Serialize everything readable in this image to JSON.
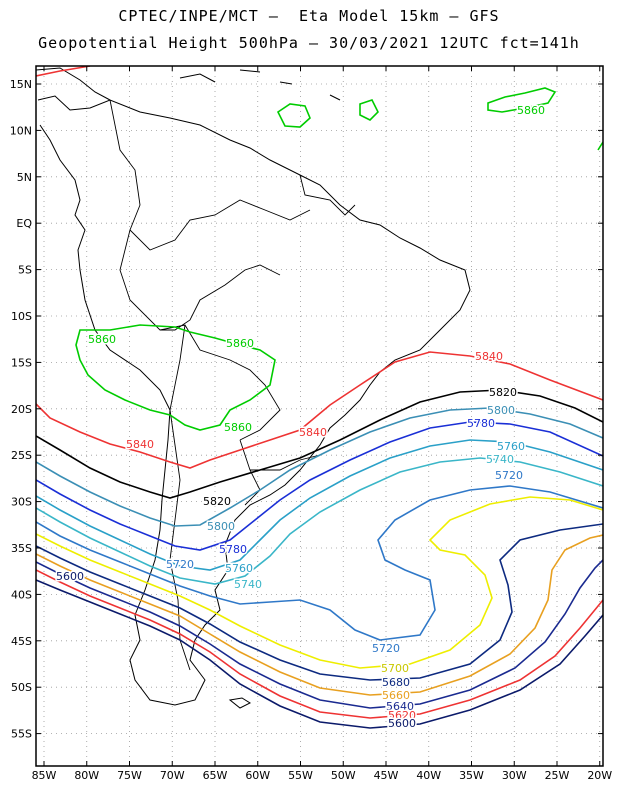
{
  "header": {
    "line1": "CPTEC/INPE/MCT –  Eta Model 15km – GFS",
    "line2": "Geopotential Height 500hPa – 30/03/2021 12UTC fct=141h"
  },
  "axes": {
    "lat_labels": [
      "15N",
      "10N",
      "5N",
      "EQ",
      "5S",
      "10S",
      "15S",
      "20S",
      "25S",
      "30S",
      "35S",
      "40S",
      "45S",
      "50S",
      "55S"
    ],
    "lon_labels": [
      "85W",
      "80W",
      "75W",
      "70W",
      "65W",
      "60W",
      "55W",
      "50W",
      "45W",
      "40W",
      "35W",
      "30W",
      "25W",
      "20W"
    ]
  },
  "legend_colors": {
    "5860": "#00cc00",
    "5840": "#ee3333",
    "5820": "#000000",
    "5800": "#3b8fb5",
    "5780": "#1a2fd6",
    "5760": "#2aa0c8",
    "5740": "#3ab6c8",
    "5720": "#2f78c8",
    "5700": "#eeee00",
    "5680": "#0d2a80",
    "5660": "#e8a020",
    "5640": "#1a2a90",
    "5600": "#0b1a6a"
  },
  "contour_labels": [
    {
      "text": "5860",
      "color": "#00cc00"
    },
    {
      "text": "5860",
      "color": "#00cc00"
    },
    {
      "text": "5860",
      "color": "#00cc00"
    },
    {
      "text": "5860",
      "color": "#00cc00"
    },
    {
      "text": "5840",
      "color": "#ee3333"
    },
    {
      "text": "5840",
      "color": "#ee3333"
    },
    {
      "text": "5840",
      "color": "#ee3333"
    },
    {
      "text": "5820",
      "color": "#000000"
    },
    {
      "text": "5820",
      "color": "#000000"
    },
    {
      "text": "5800",
      "color": "#3b8fb5"
    },
    {
      "text": "5800",
      "color": "#3b8fb5"
    },
    {
      "text": "5780",
      "color": "#1a2fd6"
    },
    {
      "text": "5780",
      "color": "#1a2fd6"
    },
    {
      "text": "5760",
      "color": "#2aa0c8"
    },
    {
      "text": "5760",
      "color": "#2aa0c8"
    },
    {
      "text": "5740",
      "color": "#3ab6c8"
    },
    {
      "text": "5740",
      "color": "#3ab6c8"
    },
    {
      "text": "5720",
      "color": "#2f78c8"
    },
    {
      "text": "5720",
      "color": "#2f78c8"
    },
    {
      "text": "5720",
      "color": "#2f78c8"
    },
    {
      "text": "5700",
      "color": "#c8c800"
    },
    {
      "text": "5680",
      "color": "#0d2a80"
    },
    {
      "text": "5660",
      "color": "#e8a020"
    },
    {
      "text": "5640",
      "color": "#1a2a90"
    },
    {
      "text": "5620",
      "color": "#ee3333"
    },
    {
      "text": "5600",
      "color": "#0b1a6a"
    },
    {
      "text": "5600",
      "color": "#0b1a6a"
    }
  ]
}
